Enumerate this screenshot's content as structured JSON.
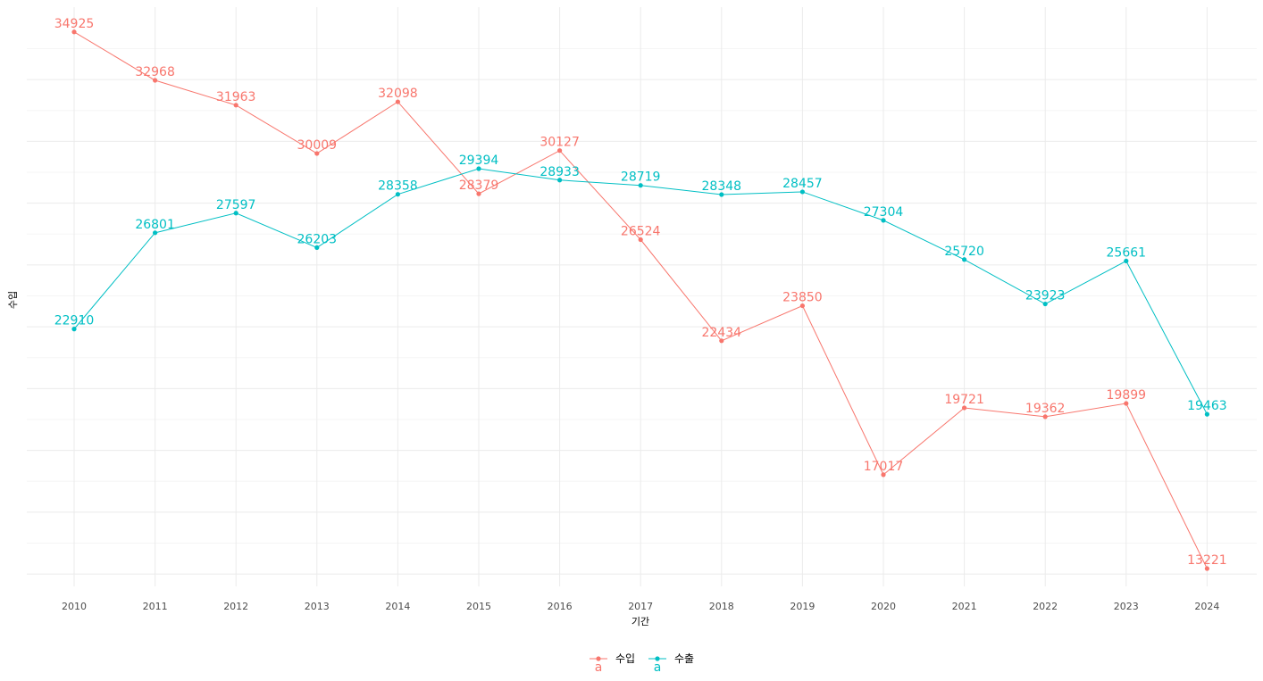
{
  "chart_data": {
    "type": "line",
    "x": [
      "2010",
      "2011",
      "2012",
      "2013",
      "2014",
      "2015",
      "2016",
      "2017",
      "2018",
      "2019",
      "2020",
      "2021",
      "2022",
      "2023",
      "2024"
    ],
    "series": [
      {
        "name": "수입",
        "color": "#f8766d",
        "values": [
          34925,
          32968,
          31963,
          30009,
          32098,
          28379,
          30127,
          26524,
          22434,
          23850,
          17017,
          19721,
          19362,
          19899,
          13221
        ]
      },
      {
        "name": "수출",
        "color": "#00bfc4",
        "values": [
          22910,
          26801,
          27597,
          26203,
          28358,
          29394,
          28933,
          28719,
          28348,
          28457,
          27304,
          25720,
          23923,
          25661,
          19463
        ]
      }
    ],
    "xlabel": "기간",
    "ylabel": "수입",
    "ylim": [
      12500,
      36000
    ],
    "y_tick_labels_shown": false,
    "grid": true,
    "legend_position": "bottom",
    "legend_key_glyph": "a"
  }
}
